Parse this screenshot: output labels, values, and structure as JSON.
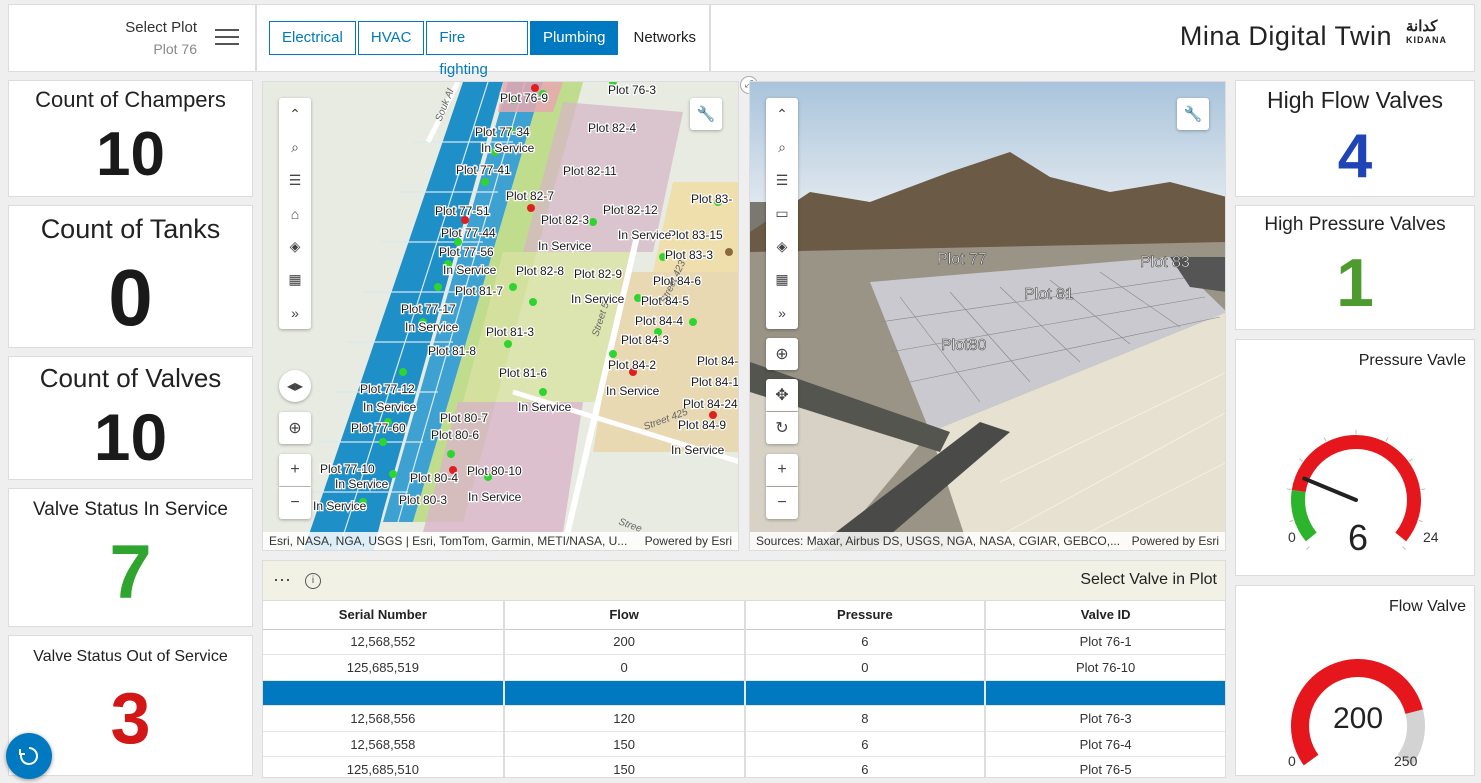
{
  "header": {
    "select_plot_label": "Select Plot",
    "select_plot_value": "Plot 76",
    "tabs": [
      {
        "label": "Electrical",
        "active": false
      },
      {
        "label": "HVAC",
        "active": false
      },
      {
        "label": "Fire fighting",
        "active": false
      },
      {
        "label": "Plumbing",
        "active": true
      },
      {
        "label": "Networks",
        "active": false
      }
    ],
    "app_title": "Mina Digital Twin",
    "logo_arabic": "كدانة",
    "logo_english": "KIDANA"
  },
  "kpis_left": [
    {
      "label": "Count of Champers",
      "value": "10",
      "color": "#1a1a1a"
    },
    {
      "label": "Count of Tanks",
      "value": "0",
      "color": "#1a1a1a"
    },
    {
      "label": "Count of Valves",
      "value": "10",
      "color": "#1a1a1a"
    },
    {
      "label": "Valve Status In Service",
      "value": "7",
      "color": "#2fa52f"
    },
    {
      "label": "Valve Status Out of Service",
      "value": "3",
      "color": "#d31717"
    }
  ],
  "kpis_right": [
    {
      "label": "High Flow Valves",
      "value": "4",
      "color": "#1f44b5"
    },
    {
      "label": "High Pressure Valves",
      "value": "1",
      "color": "#4d9a2e"
    }
  ],
  "map2d": {
    "attribution": "Esri, NASA, NGA, USGS | Esri, TomTom, Garmin, METI/NASA, U...",
    "powered": "Powered by Esri",
    "labels": [
      {
        "t": "Plot 76-9"
      },
      {
        "t": "Plot 76-3"
      },
      {
        "t": "Plot 77-34"
      },
      {
        "t": "In Service"
      },
      {
        "t": "Plot 82-4"
      },
      {
        "t": "Plot 77-41"
      },
      {
        "t": "Plot 82-11"
      },
      {
        "t": "Plot 82-7"
      },
      {
        "t": "Plot 83-"
      },
      {
        "t": "Plot 77-51"
      },
      {
        "t": "Plot 82-3"
      },
      {
        "t": "Plot 82-12"
      },
      {
        "t": "Plot 83-15"
      },
      {
        "t": "Plot 77-44"
      },
      {
        "t": "In Service"
      },
      {
        "t": "In Service"
      },
      {
        "t": "Plot 83-3"
      },
      {
        "t": "Plot 77-56"
      },
      {
        "t": "In Service"
      },
      {
        "t": "Plot 82-8"
      },
      {
        "t": "Plot 82-9"
      },
      {
        "t": "Plot 84-6"
      },
      {
        "t": "Plot 81-7"
      },
      {
        "t": "In Service"
      },
      {
        "t": "Plot 84-5"
      },
      {
        "t": "Plot 77-17"
      },
      {
        "t": "Plot 84-4"
      },
      {
        "t": "In Service"
      },
      {
        "t": "Plot 81-3"
      },
      {
        "t": "Plot 84-3"
      },
      {
        "t": "Plot 81-8"
      },
      {
        "t": "Plot 84-"
      },
      {
        "t": "Plot 81-6"
      },
      {
        "t": "Plot 84-2"
      },
      {
        "t": "Plot 84-1"
      },
      {
        "t": "Plot 77-12"
      },
      {
        "t": "In Service"
      },
      {
        "t": "In Service"
      },
      {
        "t": "Plot 84-24"
      },
      {
        "t": "In Service"
      },
      {
        "t": "Plot 80-7"
      },
      {
        "t": "Plot 84-9"
      },
      {
        "t": "Plot 77-60"
      },
      {
        "t": "Plot 80-6"
      },
      {
        "t": "In Service"
      },
      {
        "t": "Plot 77-10"
      },
      {
        "t": "Plot 80-10"
      },
      {
        "t": "Plot 80-4"
      },
      {
        "t": "In Service"
      },
      {
        "t": "In Service"
      },
      {
        "t": "Plot 80-3"
      },
      {
        "t": "In Service"
      },
      {
        "t": "Souk Al"
      },
      {
        "t": "Street 5"
      },
      {
        "t": "Street 423"
      },
      {
        "t": "Street 425"
      },
      {
        "t": "Stree"
      }
    ]
  },
  "map3d": {
    "attribution": "Sources: Maxar, Airbus DS, USGS, NGA, NASA, CGIAR, GEBCO,...",
    "powered": "Powered by Esri",
    "labels": [
      "Plot 77",
      "Plot 83",
      "Plot 81",
      "Plot80"
    ]
  },
  "table": {
    "title": "Select Valve in Plot",
    "columns": [
      "Serial Number",
      "Flow",
      "Pressure",
      "Valve ID"
    ],
    "rows": [
      [
        "12,568,552",
        "200",
        "6",
        "Plot 76-1"
      ],
      [
        "125,685,519",
        "0",
        "0",
        "Plot 76-10"
      ],
      [
        "",
        "",
        "",
        ""
      ],
      [
        "12,568,556",
        "120",
        "8",
        "Plot 76-3"
      ],
      [
        "12,568,558",
        "150",
        "6",
        "Plot 76-4"
      ],
      [
        "125,685,510",
        "150",
        "6",
        "Plot 76-5"
      ]
    ],
    "selected_row": 2
  },
  "gauge_pressure": {
    "title": "Pressure Vavle",
    "value": "6",
    "min": "0",
    "max": "24",
    "fraction": 0.25
  },
  "gauge_flow": {
    "title": "Flow Valve",
    "value": "200",
    "min": "0",
    "max": "250",
    "fraction": 0.8
  },
  "colors": {
    "accent": "#0079c1",
    "gauge_red": "#e5171c",
    "gauge_green": "#2db42d",
    "gauge_gray": "#d3d3d3"
  },
  "icons": [
    "hamburger-menu-icon",
    "refresh-icon",
    "expand-icon",
    "wrench-icon",
    "search-icon",
    "layer-list-icon",
    "home-icon",
    "layers-icon",
    "qr-icon",
    "chevron-up-icon",
    "chevron-right-icon",
    "compass-icon",
    "locate-icon",
    "zoom-in-icon",
    "zoom-out-icon",
    "pan-icon",
    "rotate-icon",
    "presentation-icon",
    "info-icon",
    "more-icon"
  ]
}
